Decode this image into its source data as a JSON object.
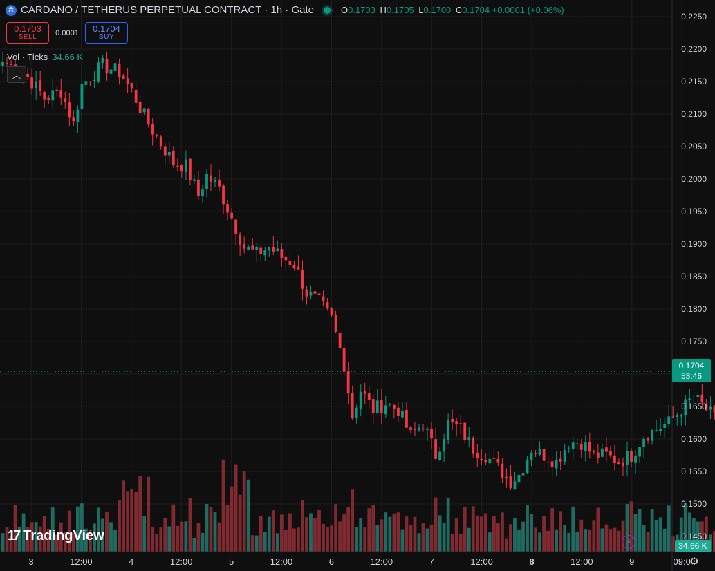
{
  "header": {
    "symbol_icon": "cardano-coin-icon",
    "title": "CARDANO / TETHERUS PERPETUAL CONTRACT · 1h · Gate",
    "status_icon": "market-open-dot-icon",
    "ohlc": {
      "o_label": "O",
      "o": "0.1703",
      "h_label": "H",
      "h": "0.1705",
      "l_label": "L",
      "l": "0.1700",
      "c_label": "C",
      "c": "0.1704",
      "change": "+0.0001 (+0.06%)"
    }
  },
  "trade": {
    "sell_price": "0.1703",
    "sell_label": "SELL",
    "spread": "0.0001",
    "buy_price": "0.1704",
    "buy_label": "BUY"
  },
  "volume_legend": {
    "label": "Vol · Ticks",
    "value": "34.66 K"
  },
  "collapse_icon": "chevron-up-icon",
  "branding": {
    "logo_mark": "17",
    "logo_text": "TradingView"
  },
  "price_tag": {
    "price": "0.1704",
    "countdown": "53:46"
  },
  "volume_tag": "34.66 K",
  "colors": {
    "up": "#089981",
    "down": "#f23645",
    "vol_up": "#1f6b62",
    "vol_down": "#7f2a31",
    "grid": "#1e1e1e",
    "text": "#d1d4dc",
    "background": "#0f0f0f"
  },
  "chart_data": {
    "type": "candlestick",
    "interval": "1h",
    "y_axis_ticks": [
      "0.2250",
      "0.2200",
      "0.2150",
      "0.2100",
      "0.2050",
      "0.2000",
      "0.1950",
      "0.1900",
      "0.1850",
      "0.1800",
      "0.1750",
      "0.1700",
      "0.1650",
      "0.1600",
      "0.1550",
      "0.1500",
      "0.1450"
    ],
    "y_axis_values": [
      0.225,
      0.22,
      0.215,
      0.21,
      0.205,
      0.2,
      0.195,
      0.19,
      0.185,
      0.18,
      0.175,
      0.17,
      0.165,
      0.16,
      0.155,
      0.15,
      0.145
    ],
    "x_axis_ticks": [
      "3",
      "12:00",
      "4",
      "12:00",
      "5",
      "12:00",
      "6",
      "12:00",
      "7",
      "12:00",
      "8",
      "12:00",
      "9",
      "09:0"
    ],
    "x_axis_bold": [
      false,
      false,
      false,
      false,
      false,
      false,
      false,
      false,
      false,
      false,
      true,
      false,
      false,
      false
    ],
    "last_price": 0.1704,
    "anchors": [
      [
        0,
        0.218
      ],
      [
        5,
        0.2165
      ],
      [
        10,
        0.2125
      ],
      [
        14,
        0.2135
      ],
      [
        17,
        0.2085
      ],
      [
        19,
        0.2145
      ],
      [
        24,
        0.2175
      ],
      [
        28,
        0.2165
      ],
      [
        31,
        0.2135
      ],
      [
        35,
        0.2085
      ],
      [
        38,
        0.2055
      ],
      [
        41,
        0.2025
      ],
      [
        44,
        0.202
      ],
      [
        47,
        0.1975
      ],
      [
        49,
        0.2005
      ],
      [
        52,
        0.1985
      ],
      [
        55,
        0.194
      ],
      [
        58,
        0.1895
      ],
      [
        61,
        0.1885
      ],
      [
        64,
        0.1895
      ],
      [
        67,
        0.188
      ],
      [
        70,
        0.187
      ],
      [
        73,
        0.1825
      ],
      [
        76,
        0.181
      ],
      [
        79,
        0.1785
      ],
      [
        82,
        0.1715
      ],
      [
        84,
        0.1635
      ],
      [
        86,
        0.1675
      ],
      [
        89,
        0.1645
      ],
      [
        92,
        0.1655
      ],
      [
        95,
        0.1645
      ],
      [
        98,
        0.1605
      ],
      [
        101,
        0.1625
      ],
      [
        104,
        0.1575
      ],
      [
        107,
        0.1625
      ],
      [
        110,
        0.1615
      ],
      [
        113,
        0.1585
      ],
      [
        116,
        0.1575
      ],
      [
        119,
        0.1555
      ],
      [
        122,
        0.1535
      ],
      [
        124,
        0.1545
      ],
      [
        127,
        0.1585
      ],
      [
        130,
        0.1575
      ],
      [
        133,
        0.1565
      ],
      [
        136,
        0.1595
      ],
      [
        139,
        0.1595
      ],
      [
        142,
        0.1575
      ],
      [
        145,
        0.1575
      ],
      [
        148,
        0.1565
      ],
      [
        151,
        0.1575
      ],
      [
        154,
        0.1605
      ],
      [
        157,
        0.1615
      ],
      [
        160,
        0.1625
      ],
      [
        163,
        0.1645
      ],
      [
        166,
        0.1665
      ],
      [
        169,
        0.1645
      ],
      [
        172,
        0.1625
      ],
      [
        175,
        0.1635
      ],
      [
        178,
        0.1635
      ],
      [
        181,
        0.1605
      ],
      [
        184,
        0.1605
      ],
      [
        187,
        0.1655
      ],
      [
        190,
        0.1665
      ],
      [
        193,
        0.1635
      ],
      [
        196,
        0.1615
      ],
      [
        199,
        0.1625
      ],
      [
        202,
        0.1645
      ],
      [
        205,
        0.1665
      ],
      [
        208,
        0.1685
      ],
      [
        211,
        0.1695
      ],
      [
        213,
        0.1715
      ],
      [
        216,
        0.1705
      ],
      [
        218,
        0.1712
      ],
      [
        221,
        0.1704
      ]
    ]
  }
}
